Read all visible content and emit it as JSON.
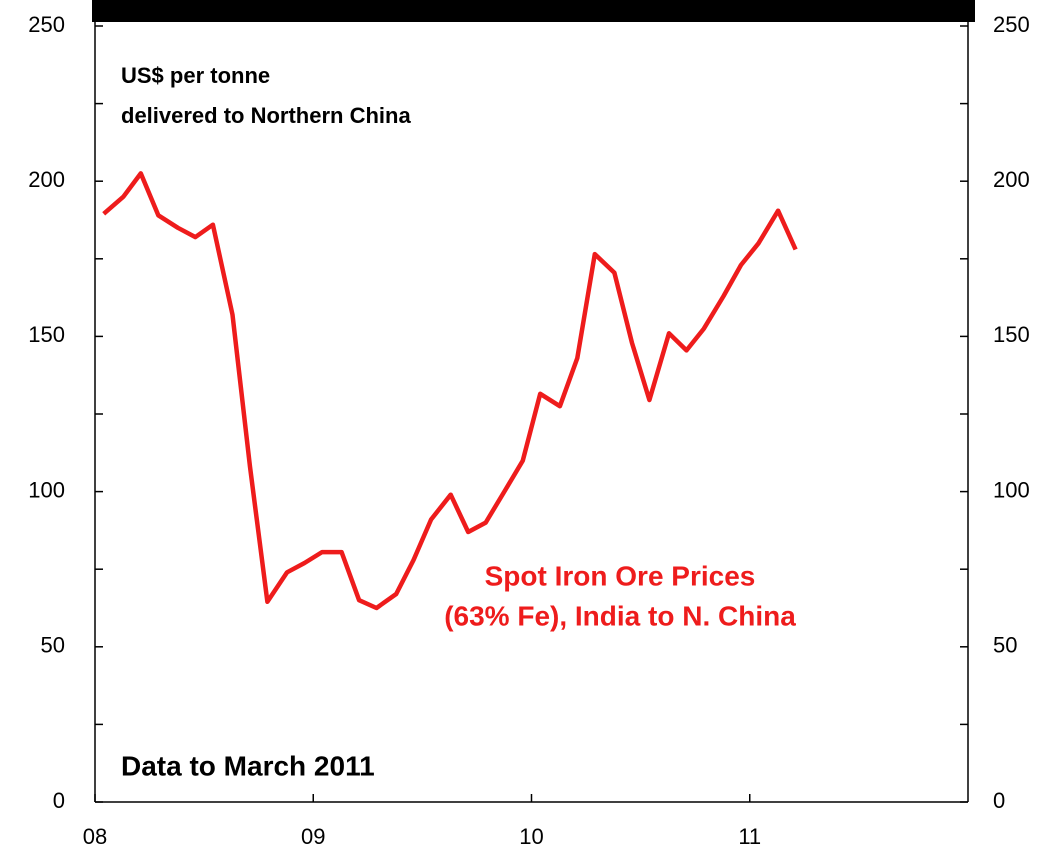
{
  "chart_data": {
    "type": "line",
    "ylabel": [
      "US$ per tonne",
      "delivered to Northern China"
    ],
    "note": "Data to March 2011",
    "annotations": [
      {
        "lines": [
          "Spot Iron Ore Prices",
          "(63% Fe), India to N. China"
        ],
        "color": "#ee1c1c"
      }
    ],
    "xlim": [
      2008,
      2012
    ],
    "xticks": [
      {
        "value": 2008,
        "label": "08"
      },
      {
        "value": 2009,
        "label": "09"
      },
      {
        "value": 2010,
        "label": "10"
      },
      {
        "value": 2011,
        "label": "11"
      }
    ],
    "ylim": [
      0,
      250
    ],
    "yticks": [
      0,
      50,
      100,
      150,
      200,
      250
    ],
    "y2lim": [
      0,
      250
    ],
    "y2ticks": [
      0,
      50,
      100,
      150,
      200,
      250
    ],
    "series": [
      {
        "color": "#ee1c1c",
        "x": [
          2008.04,
          2008.13,
          2008.21,
          2008.29,
          2008.38,
          2008.46,
          2008.54,
          2008.63,
          2008.71,
          2008.79,
          2008.88,
          2008.96,
          2009.04,
          2009.13,
          2009.21,
          2009.29,
          2009.38,
          2009.46,
          2009.54,
          2009.63,
          2009.71,
          2009.79,
          2009.88,
          2009.96,
          2010.04,
          2010.13,
          2010.21,
          2010.29,
          2010.38,
          2010.46,
          2010.54,
          2010.63,
          2010.71,
          2010.79,
          2010.88,
          2010.96,
          2011.04,
          2011.13,
          2011.21
        ],
        "values": [
          189.5,
          195,
          202.5,
          189,
          185,
          182,
          186,
          157,
          108,
          64.5,
          74,
          77,
          80.5,
          80.5,
          65,
          62.5,
          67,
          78,
          91,
          99,
          87,
          90,
          100.5,
          110,
          131.5,
          127.5,
          143,
          176.5,
          170.5,
          148,
          129.5,
          151,
          145.5,
          152.5,
          163,
          173,
          180,
          190.5,
          178
        ]
      }
    ]
  }
}
